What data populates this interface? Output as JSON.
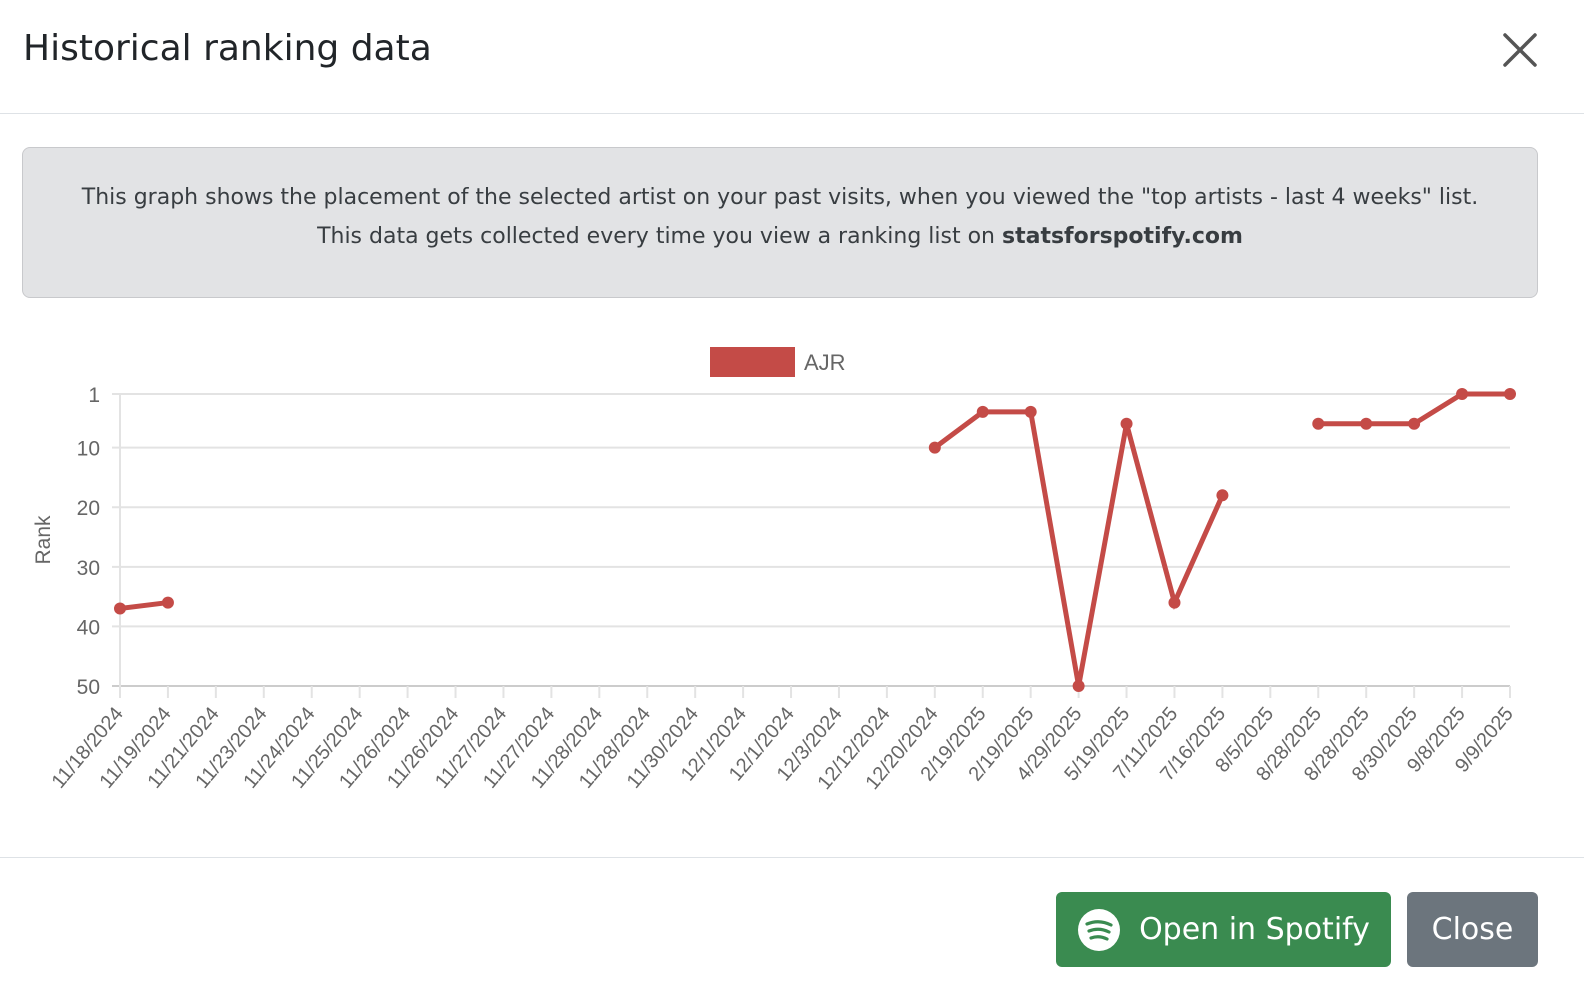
{
  "modal": {
    "title": "Historical ranking data",
    "info_line1": "This graph shows the placement of the selected artist on your past visits, when you viewed the \"top artists - last 4 weeks\" list.",
    "info_line2_prefix": "This data gets collected every time you view a ranking list on ",
    "info_line2_site": "statsforspotify.com",
    "open_spotify_label": "Open in Spotify",
    "close_label": "Close"
  },
  "colors": {
    "series": "#c44b47",
    "spotify_button": "#3a8b50",
    "close_button": "#6c757d"
  },
  "chart_data": {
    "type": "line",
    "ylabel": "Rank",
    "y_reversed": true,
    "ylim": [
      1,
      50
    ],
    "yticks": [
      1,
      10,
      20,
      30,
      40,
      50
    ],
    "grid": true,
    "legend": "top-center",
    "categories": [
      "11/18/2024",
      "11/19/2024",
      "11/21/2024",
      "11/23/2024",
      "11/24/2024",
      "11/25/2024",
      "11/26/2024",
      "11/26/2024",
      "11/27/2024",
      "11/27/2024",
      "11/28/2024",
      "11/28/2024",
      "11/30/2024",
      "12/1/2024",
      "12/1/2024",
      "12/3/2024",
      "12/12/2024",
      "12/20/2024",
      "2/19/2025",
      "2/19/2025",
      "4/29/2025",
      "5/19/2025",
      "7/11/2025",
      "7/16/2025",
      "8/5/2025",
      "8/28/2025",
      "8/28/2025",
      "8/30/2025",
      "9/8/2025",
      "9/9/2025"
    ],
    "series": [
      {
        "name": "AJR",
        "values": [
          37,
          36,
          null,
          null,
          null,
          null,
          null,
          null,
          null,
          null,
          null,
          null,
          null,
          null,
          null,
          null,
          null,
          10,
          4,
          4,
          50,
          6,
          36,
          18,
          null,
          6,
          6,
          6,
          1,
          1
        ]
      }
    ]
  }
}
